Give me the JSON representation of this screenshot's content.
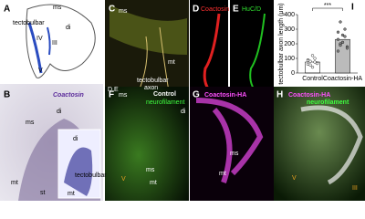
{
  "panels": [
    {
      "letter": "A",
      "labels": [
        "tectobulbar",
        "ms",
        "di",
        "IV",
        "III",
        "V"
      ]
    },
    {
      "letter": "B",
      "labels": [
        "Coactosin",
        "ms",
        "di",
        "mt",
        "st",
        "di",
        "tectobulbar",
        "mt"
      ]
    },
    {
      "letter": "C",
      "labels": [
        "ms",
        "mt",
        "tectobulbar",
        "axon",
        "D,E"
      ]
    },
    {
      "letter": "D",
      "labels": [
        "Coactosin"
      ]
    },
    {
      "letter": "E",
      "labels": [
        "HuC/D"
      ]
    },
    {
      "letter": "F",
      "labels": [
        "ms",
        "Control",
        "neurofilament",
        "di",
        "ms",
        "mt",
        "V"
      ]
    },
    {
      "letter": "G",
      "labels": [
        "Coactosin-HA",
        "ms",
        "mt"
      ]
    },
    {
      "letter": "H",
      "labels": [
        "Coactosin-HA",
        "neurofilament",
        "V",
        "III"
      ]
    }
  ],
  "chart_data": {
    "type": "scatter",
    "letter": "I",
    "ylabel": "tectobulbar axon length (μm)",
    "significance": "***",
    "categories": [
      "Control",
      "Coactosin-HA"
    ],
    "series": [
      {
        "name": "Control",
        "color": "#ffffff",
        "values": [
          60,
          80,
          40,
          100,
          70,
          90,
          55,
          120,
          75,
          65,
          85
        ]
      },
      {
        "name": "Coactosin-HA",
        "color": "#888888",
        "values": [
          150,
          200,
          260,
          300,
          180,
          230,
          350,
          210,
          250,
          170,
          280,
          190
        ]
      }
    ],
    "means": [
      75,
      230
    ],
    "ylim": [
      0,
      400
    ],
    "yticks": [
      0,
      100,
      200,
      300,
      400
    ]
  }
}
